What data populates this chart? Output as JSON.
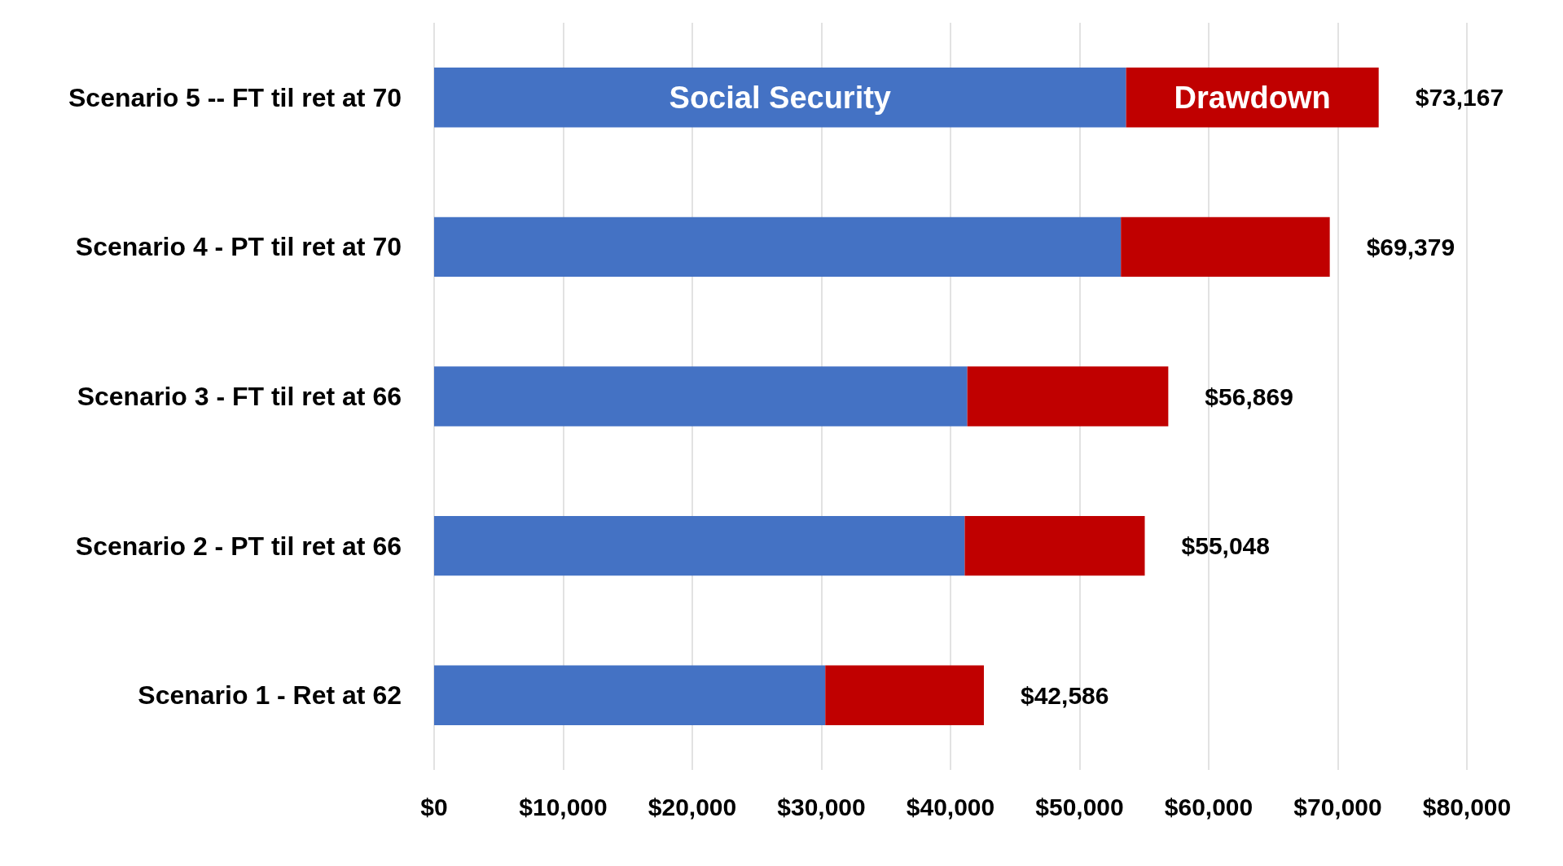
{
  "chart_data": {
    "type": "bar",
    "orientation": "horizontal",
    "stacked": true,
    "categories": [
      "Scenario 5 -- FT til ret at 70",
      "Scenario 4 - PT til ret at 70",
      "Scenario 3 - FT til ret at 66",
      "Scenario 2 - PT til ret at 66",
      "Scenario 1 - Ret at 62"
    ],
    "series": [
      {
        "name": "Social Security",
        "color": "#4472c4",
        "values": [
          53600,
          53200,
          41300,
          41100,
          30300
        ]
      },
      {
        "name": "Drawdown",
        "color": "#c00000",
        "values": [
          19567,
          16179,
          15569,
          13948,
          12286
        ]
      }
    ],
    "totals": [
      "$73,167",
      "$69,379",
      "$56,869",
      "$55,048",
      "$42,586"
    ],
    "xlim": [
      0,
      80000
    ],
    "xticks": [
      {
        "value": 0,
        "label": "$0"
      },
      {
        "value": 10000,
        "label": "$10,000"
      },
      {
        "value": 20000,
        "label": "$20,000"
      },
      {
        "value": 30000,
        "label": "$30,000"
      },
      {
        "value": 40000,
        "label": "$40,000"
      },
      {
        "value": 50000,
        "label": "$50,000"
      },
      {
        "value": 60000,
        "label": "$60,000"
      },
      {
        "value": 70000,
        "label": "$70,000"
      },
      {
        "value": 80000,
        "label": "$80,000"
      }
    ],
    "grid": "x"
  }
}
